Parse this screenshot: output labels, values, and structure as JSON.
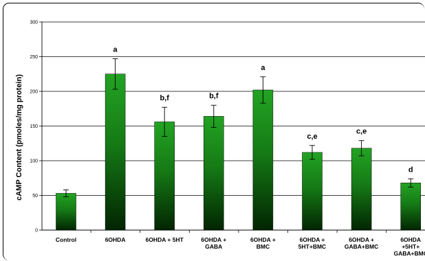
{
  "chart_data": {
    "type": "bar",
    "title": "",
    "xlabel": "",
    "ylabel": "cAMP Content (pmoles/mg protein)",
    "ylim": [
      0,
      300
    ],
    "yticks": [
      0,
      50,
      100,
      150,
      200,
      250,
      300
    ],
    "grid": true,
    "legend": "none",
    "bar_color": "#1f8a1f",
    "categories": [
      [
        "Control"
      ],
      [
        "6OHDA"
      ],
      [
        "6OHDA + 5HT"
      ],
      [
        "6OHDA +",
        "GABA"
      ],
      [
        "6OHDA +",
        "BMC"
      ],
      [
        "6OHDA +",
        "5HT+BMC"
      ],
      [
        "6OHDA +",
        "GABA+BMC"
      ],
      [
        "6OHDA",
        "+5HT+",
        "GABA+BMC"
      ]
    ],
    "values": [
      53,
      225,
      156,
      164,
      202,
      112,
      118,
      68
    ],
    "errors": [
      5,
      22,
      21,
      16,
      19,
      10,
      11,
      6
    ],
    "labels": [
      "",
      "a",
      "b,f",
      "b,f",
      "a",
      "c,e",
      "c,e",
      "d"
    ]
  }
}
